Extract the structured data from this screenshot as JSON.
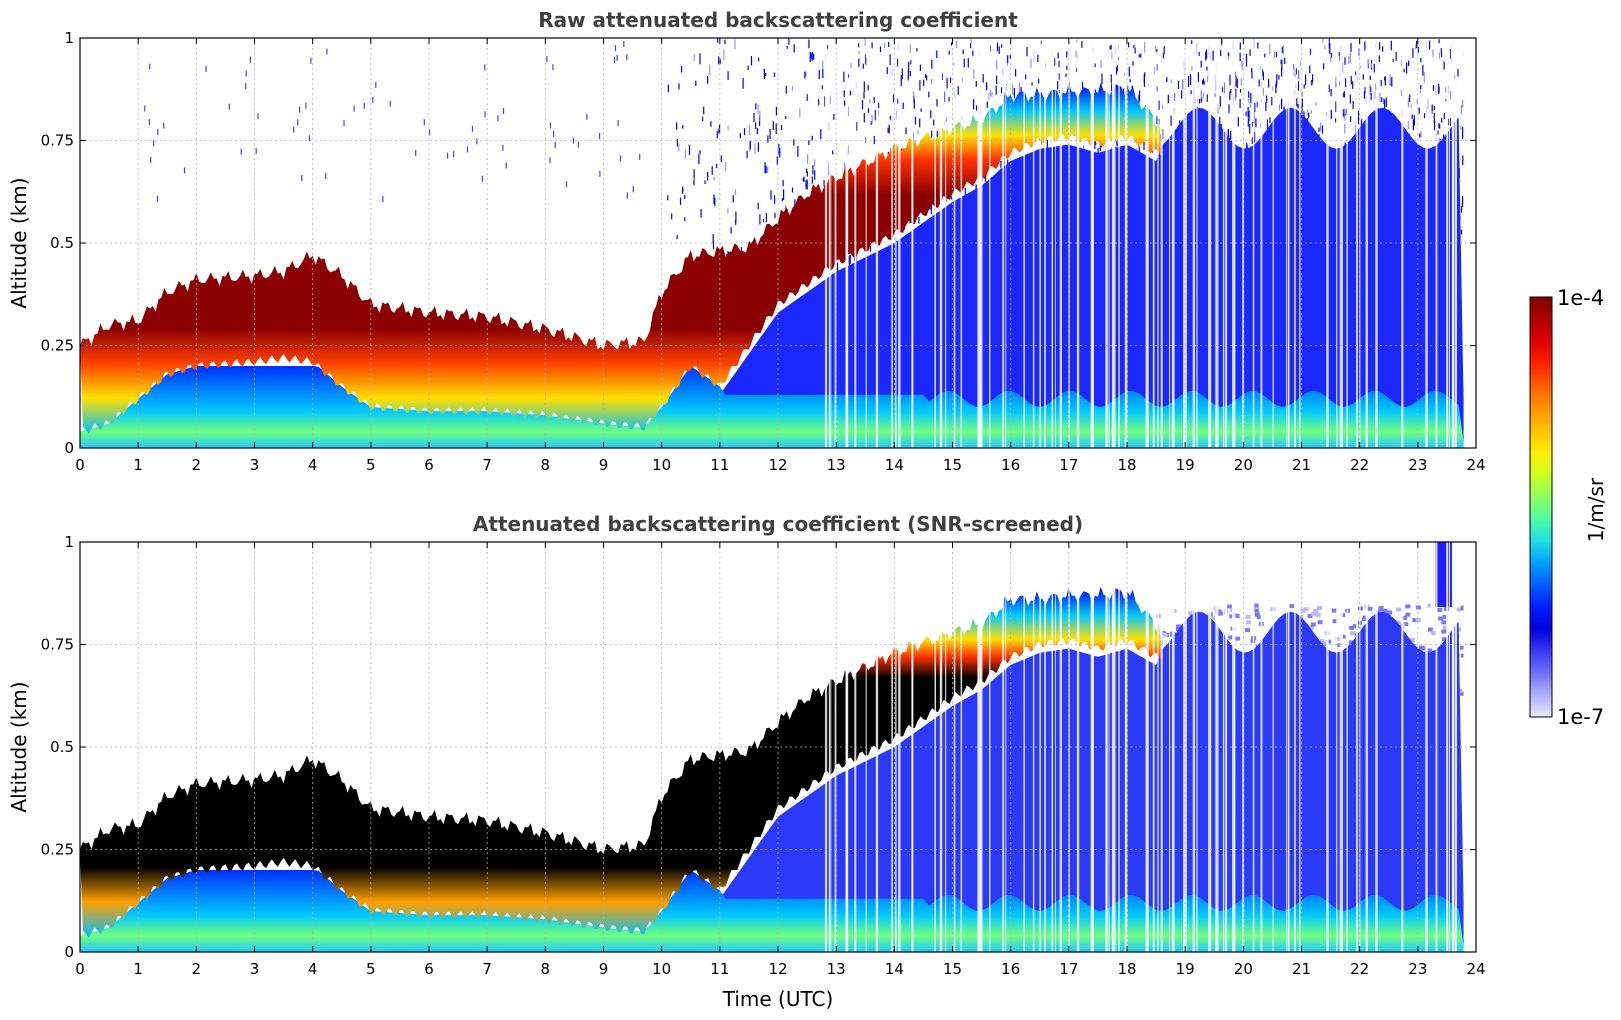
{
  "chart_data": [
    {
      "type": "heatmap",
      "id": "raw",
      "title": "Raw attenuated backscattering coefficient",
      "xlabel": "",
      "ylabel": "Altitude (km)",
      "xlim": [
        0,
        24
      ],
      "ylim": [
        0,
        1
      ],
      "x_ticks": [
        "0",
        "1",
        "2",
        "3",
        "4",
        "5",
        "6",
        "7",
        "8",
        "9",
        "10",
        "11",
        "12",
        "13",
        "14",
        "15",
        "16",
        "17",
        "18",
        "19",
        "20",
        "21",
        "22",
        "23",
        "24"
      ],
      "y_ticks": [
        "0",
        "0.25",
        "0.5",
        "0.75",
        "1"
      ],
      "grid": true,
      "layer_top_km": [
        [
          0,
          0.25
        ],
        [
          0.5,
          0.3
        ],
        [
          1,
          0.31
        ],
        [
          1.5,
          0.38
        ],
        [
          2,
          0.41
        ],
        [
          3,
          0.42
        ],
        [
          3.5,
          0.43
        ],
        [
          4,
          0.47
        ],
        [
          4.5,
          0.42
        ],
        [
          5,
          0.35
        ],
        [
          6,
          0.33
        ],
        [
          7,
          0.32
        ],
        [
          8,
          0.29
        ],
        [
          9,
          0.25
        ],
        [
          9.7,
          0.26
        ],
        [
          10,
          0.38
        ],
        [
          10.5,
          0.47
        ],
        [
          11,
          0.48
        ],
        [
          11.5,
          0.49
        ],
        [
          12,
          0.56
        ],
        [
          12.5,
          0.62
        ],
        [
          13,
          0.66
        ],
        [
          14,
          0.73
        ],
        [
          15,
          0.78
        ],
        [
          15.5,
          0.8
        ],
        [
          16,
          0.86
        ],
        [
          16.5,
          0.86
        ],
        [
          17,
          0.87
        ],
        [
          17.5,
          0.87
        ],
        [
          18,
          0.88
        ],
        [
          18.5,
          0.8
        ]
      ],
      "layer_base_km": [
        [
          0,
          0.04
        ],
        [
          0.5,
          0.06
        ],
        [
          1,
          0.12
        ],
        [
          1.5,
          0.18
        ],
        [
          2,
          0.2
        ],
        [
          3,
          0.21
        ],
        [
          3.5,
          0.22
        ],
        [
          4,
          0.21
        ],
        [
          4.5,
          0.15
        ],
        [
          5,
          0.1
        ],
        [
          6,
          0.09
        ],
        [
          7,
          0.09
        ],
        [
          8,
          0.08
        ],
        [
          9,
          0.06
        ],
        [
          9.7,
          0.05
        ],
        [
          10,
          0.1
        ],
        [
          10.5,
          0.2
        ],
        [
          11,
          0.15
        ],
        [
          11.5,
          0.25
        ],
        [
          12,
          0.35
        ],
        [
          12.5,
          0.4
        ],
        [
          13,
          0.45
        ],
        [
          14,
          0.52
        ],
        [
          15,
          0.62
        ],
        [
          15.5,
          0.66
        ],
        [
          16,
          0.72
        ],
        [
          16.5,
          0.75
        ],
        [
          17,
          0.76
        ],
        [
          17.5,
          0.74
        ],
        [
          18,
          0.76
        ],
        [
          18.5,
          0.72
        ]
      ]
    },
    {
      "type": "heatmap",
      "id": "screened",
      "title": "Attenuated backscattering coefficient (SNR-screened)",
      "xlabel": "Time (UTC)",
      "ylabel": "Altitude (km)",
      "xlim": [
        0,
        24
      ],
      "ylim": [
        0,
        1
      ],
      "x_ticks": [
        "0",
        "1",
        "2",
        "3",
        "4",
        "5",
        "6",
        "7",
        "8",
        "9",
        "10",
        "11",
        "12",
        "13",
        "14",
        "15",
        "16",
        "17",
        "18",
        "19",
        "20",
        "21",
        "22",
        "23",
        "24"
      ],
      "y_ticks": [
        "0",
        "0.25",
        "0.5",
        "0.75",
        "1"
      ],
      "grid": true
    }
  ],
  "colorbar": {
    "label": "1/m/sr",
    "max_label": "1e-4",
    "min_label": "1e-7",
    "colors": [
      "#800000",
      "#b00000",
      "#e00000",
      "#ff2000",
      "#ff6000",
      "#ff9000",
      "#ffc000",
      "#ffee00",
      "#d0ff20",
      "#90ff60",
      "#50ffa0",
      "#20e0e0",
      "#00a0ff",
      "#0060ff",
      "#0020ff",
      "#0000e0",
      "#3838f0",
      "#7070f8",
      "#b0b0fc",
      "#e8e8ff"
    ]
  }
}
